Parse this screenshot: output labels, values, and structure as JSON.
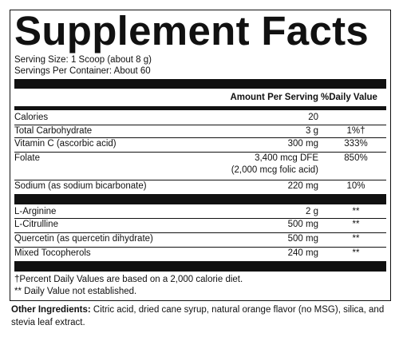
{
  "header": {
    "title": "Supplement Facts",
    "serving_size": "Serving Size: 1 Scoop (about 8 g)",
    "servings_per_container": "Servings Per Container: About 60"
  },
  "table": {
    "columns": [
      "Amount Per Serving",
      "%Daily Value"
    ],
    "rows": [
      {
        "name": "Calories",
        "amount": "20"
      },
      {
        "name": "Total Carbohydrate",
        "amount": "3 g",
        "dv": "1%†"
      },
      {
        "name": "Vitamin C (ascorbic acid)",
        "amount": "300 mg",
        "dv": "333%"
      },
      {
        "name": "Folate",
        "amount": "3,400 mcg DFE",
        "amount_note": "(2,000 mcg folic acid)",
        "dv": "850%"
      },
      {
        "name": "Sodium (as sodium bicarbonate)",
        "amount": "220 mg",
        "dv": "10%"
      }
    ],
    "rows2": [
      {
        "name": "L-Arginine",
        "amount": "2 g",
        "dv": "**"
      },
      {
        "name": "L-Citrulline",
        "amount": "500 mg",
        "dv": "**"
      },
      {
        "name": "Quercetin (as quercetin dihydrate)",
        "amount": "500 mg",
        "dv": "**"
      },
      {
        "name": "Mixed Tocopherols",
        "amount": "240 mg",
        "dv": "**"
      }
    ]
  },
  "footnotes": [
    "†Percent Daily Values are based on a 2,000 calorie diet.",
    "** Daily Value not established."
  ],
  "other_ingredients": {
    "label": "Other Ingredients:",
    "text": "Citric acid, dried cane syrup, natural orange flavor (no MSG), silica, and stevia leaf extract."
  }
}
